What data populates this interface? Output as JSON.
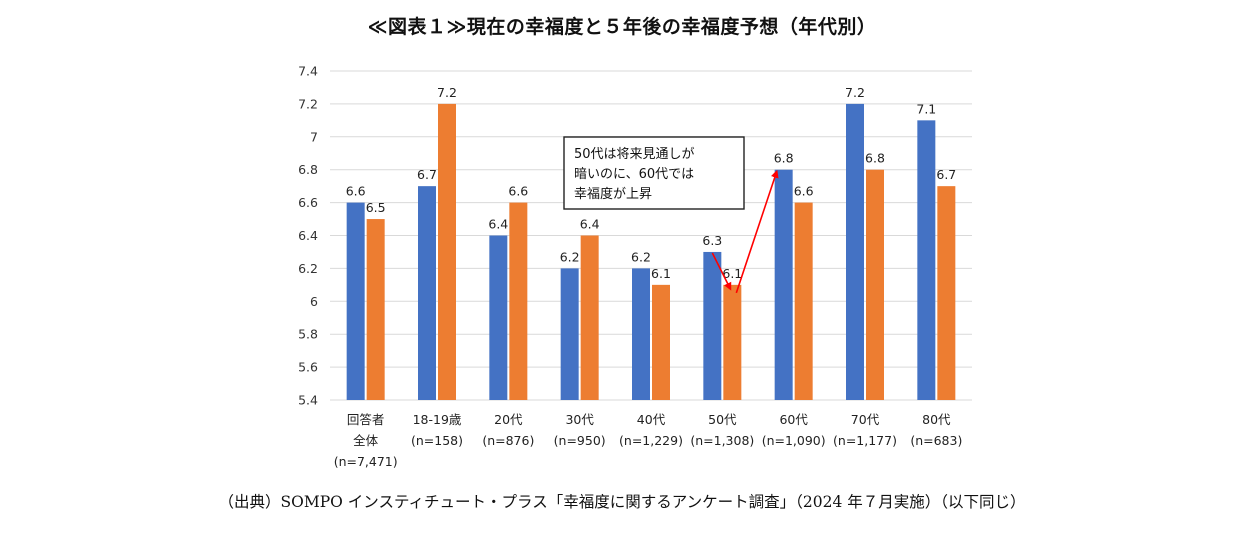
{
  "title": "≪図表１≫現在の幸福度と５年後の幸福度予想（年代別）",
  "source": "（出典）SOMPO インスティチュート・プラス「幸福度に関するアンケート調査」（2024 年７月実施）（以下同じ）",
  "chart_data": {
    "type": "bar",
    "title": "≪図表１≫現在の幸福度と５年後の幸福度予想（年代別）",
    "categories": [
      [
        "回答者",
        "全体",
        "(n=7,471)"
      ],
      [
        "18-19歳",
        "(n=158)"
      ],
      [
        "20代",
        "(n=876)"
      ],
      [
        "30代",
        "(n=950)"
      ],
      [
        "40代",
        "(n=1,229)"
      ],
      [
        "50代",
        "(n=1,308)"
      ],
      [
        "60代",
        "(n=1,090)"
      ],
      [
        "70代",
        "(n=1,177)"
      ],
      [
        "80代",
        "(n=683)"
      ]
    ],
    "series": [
      {
        "color": "#4472C4",
        "values": [
          6.6,
          6.7,
          6.4,
          6.2,
          6.2,
          6.3,
          6.8,
          7.2,
          7.1
        ]
      },
      {
        "color": "#ED7D31",
        "values": [
          6.5,
          7.2,
          6.6,
          6.4,
          6.1,
          6.1,
          6.6,
          6.8,
          6.7
        ]
      }
    ],
    "ylim": [
      5.4,
      7.4
    ],
    "yticks": [
      "5.4",
      "5.6",
      "5.8",
      "6",
      "6.2",
      "6.4",
      "6.6",
      "6.8",
      "7",
      "7.2",
      "7.4"
    ],
    "grid": true,
    "legend": "none",
    "annotation": {
      "lines": [
        "50代は将来見通しが",
        "暗いのに、60代では",
        "幸福度が上昇"
      ],
      "arrow_color": "#FF0000"
    }
  }
}
